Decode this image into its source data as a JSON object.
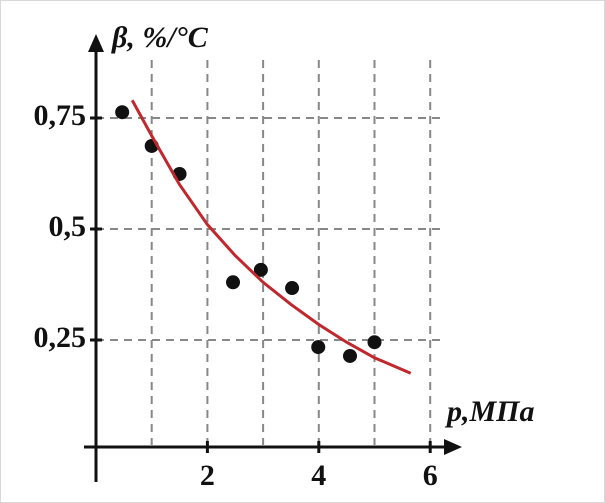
{
  "chart_data": {
    "type": "scatter",
    "y_label": "β, %/°C",
    "x_label": "p,МПа",
    "xlim": [
      0,
      6.4
    ],
    "ylim": [
      0,
      0.93
    ],
    "xticks": [
      2,
      4,
      6
    ],
    "xgrid": [
      1,
      2,
      3,
      4,
      5,
      6
    ],
    "yticks": [
      {
        "value": 0.25,
        "label": "0,25"
      },
      {
        "value": 0.5,
        "label": "0,5"
      },
      {
        "value": 0.75,
        "label": "0,75"
      }
    ],
    "grid": true,
    "series": [
      {
        "kind": "points",
        "color": "#111111",
        "x": [
          0.47,
          1.0,
          1.5,
          2.46,
          2.96,
          3.52,
          3.99,
          4.56,
          5.0
        ],
        "values": [
          0.763,
          0.687,
          0.624,
          0.38,
          0.408,
          0.367,
          0.234,
          0.214,
          0.245
        ]
      },
      {
        "kind": "curve",
        "color": "#c0282d",
        "x": [
          0.65,
          1,
          1.5,
          2,
          2.5,
          3,
          3.5,
          4,
          4.5,
          5,
          5.65
        ],
        "values": [
          0.79,
          0.71,
          0.6,
          0.51,
          0.44,
          0.38,
          0.33,
          0.285,
          0.245,
          0.21,
          0.175
        ]
      }
    ]
  }
}
